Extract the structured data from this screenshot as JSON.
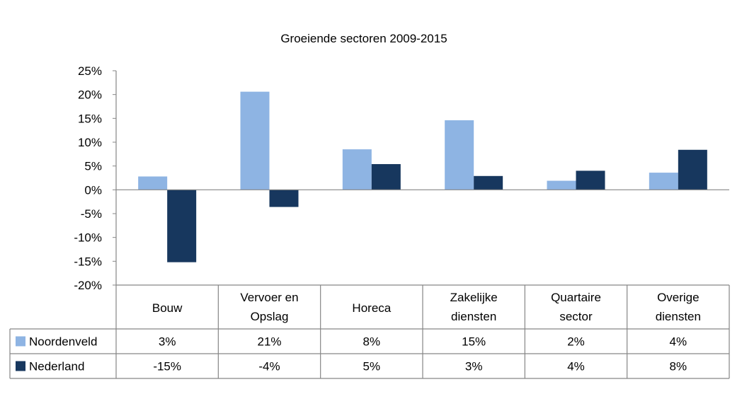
{
  "chart_data": {
    "type": "bar",
    "title": "Groeiende sectoren 2009-2015",
    "categories": [
      [
        "Bouw"
      ],
      [
        "Vervoer en",
        "Opslag"
      ],
      [
        "Horeca"
      ],
      [
        "Zakelijke",
        "diensten"
      ],
      [
        "Quartaire",
        "sector"
      ],
      [
        "Overige",
        "diensten"
      ]
    ],
    "series": [
      {
        "name": "Noordenveld",
        "color": "#8EB4E3",
        "values": [
          2.8,
          20.6,
          8.5,
          14.6,
          1.9,
          3.6
        ],
        "labels": [
          "3%",
          "21%",
          "8%",
          "15%",
          "2%",
          "4%"
        ]
      },
      {
        "name": "Nederland",
        "color": "#17375E",
        "values": [
          -15.2,
          -3.6,
          5.4,
          2.9,
          4.0,
          8.4
        ],
        "labels": [
          "-15%",
          "-4%",
          "5%",
          "3%",
          "4%",
          "8%"
        ]
      }
    ],
    "ylim": [
      -20,
      25
    ],
    "yticks": [
      "25%",
      "20%",
      "15%",
      "10%",
      "5%",
      "0%",
      "-5%",
      "-10%",
      "-15%",
      "-20%"
    ],
    "ytick_values": [
      25,
      20,
      15,
      10,
      5,
      0,
      -5,
      -10,
      -15,
      -20
    ],
    "grid": false,
    "legend": "data-table"
  }
}
